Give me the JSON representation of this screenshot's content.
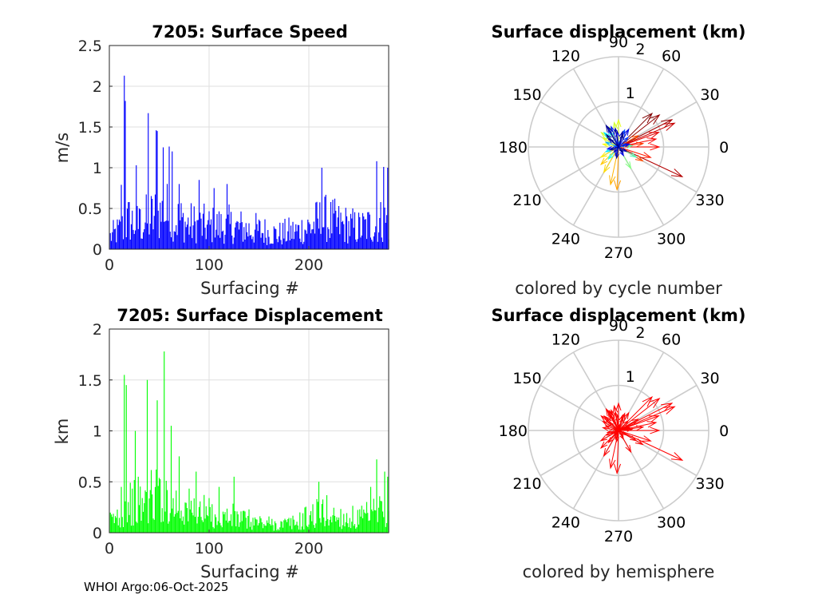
{
  "footer": "WHOI Argo:06-Oct-2025",
  "chart_data": [
    {
      "type": "bar",
      "title": "7205: Surface Speed",
      "xlabel": "Surfacing #",
      "ylabel": "m/s",
      "xlim": [
        0,
        280
      ],
      "ylim": [
        0,
        2.5
      ],
      "xticks": [
        0,
        100,
        200
      ],
      "yticks": [
        0,
        0.5,
        1,
        1.5,
        2,
        2.5
      ],
      "ytick_labels": [
        "0",
        "0.5",
        "1",
        "1.5",
        "2",
        "2.5"
      ],
      "color": "#0000ff",
      "peaks": [
        [
          15,
          2.13
        ],
        [
          16,
          1.82
        ],
        [
          39,
          1.67
        ],
        [
          47,
          1.46
        ],
        [
          48,
          1.45
        ],
        [
          54,
          1.25
        ],
        [
          60,
          1.26
        ],
        [
          63,
          1.2
        ],
        [
          27,
          1.03
        ],
        [
          12,
          0.79
        ],
        [
          30,
          0.5
        ],
        [
          70,
          0.8
        ],
        [
          90,
          0.85
        ],
        [
          105,
          0.75
        ],
        [
          118,
          0.8
        ],
        [
          213,
          1.0
        ],
        [
          268,
          1.08
        ],
        [
          275,
          1.01
        ],
        [
          279,
          1.0
        ]
      ],
      "envelope": [
        [
          0,
          0.3
        ],
        [
          10,
          0.45
        ],
        [
          20,
          0.7
        ],
        [
          30,
          0.6
        ],
        [
          45,
          0.8
        ],
        [
          55,
          0.9
        ],
        [
          65,
          0.75
        ],
        [
          80,
          0.6
        ],
        [
          100,
          0.55
        ],
        [
          120,
          0.55
        ],
        [
          150,
          0.45
        ],
        [
          170,
          0.35
        ],
        [
          190,
          0.45
        ],
        [
          200,
          0.55
        ],
        [
          215,
          0.7
        ],
        [
          230,
          0.6
        ],
        [
          250,
          0.5
        ],
        [
          265,
          0.6
        ],
        [
          280,
          0.7
        ]
      ]
    },
    {
      "type": "bar",
      "title": "7205: Surface Displacement",
      "xlabel": "Surfacing #",
      "ylabel": "km",
      "xlim": [
        0,
        280
      ],
      "ylim": [
        0,
        2
      ],
      "xticks": [
        0,
        100,
        200
      ],
      "yticks": [
        0,
        0.5,
        1,
        1.5,
        2
      ],
      "ytick_labels": [
        "0",
        "0.5",
        "1",
        "1.5",
        "2"
      ],
      "color": "#00ff00",
      "peaks": [
        [
          15,
          1.55
        ],
        [
          17,
          1.45
        ],
        [
          38,
          1.5
        ],
        [
          48,
          1.3
        ],
        [
          55,
          1.78
        ],
        [
          62,
          1.05
        ],
        [
          26,
          1.0
        ],
        [
          12,
          0.45
        ],
        [
          29,
          0.55
        ],
        [
          70,
          0.75
        ],
        [
          87,
          0.6
        ],
        [
          110,
          0.45
        ],
        [
          125,
          0.55
        ],
        [
          210,
          0.5
        ],
        [
          262,
          0.45
        ],
        [
          268,
          0.72
        ],
        [
          276,
          0.6
        ],
        [
          279,
          0.55
        ]
      ],
      "envelope": [
        [
          0,
          0.2
        ],
        [
          10,
          0.35
        ],
        [
          20,
          0.55
        ],
        [
          30,
          0.5
        ],
        [
          45,
          0.7
        ],
        [
          55,
          0.8
        ],
        [
          65,
          0.6
        ],
        [
          80,
          0.45
        ],
        [
          100,
          0.35
        ],
        [
          120,
          0.3
        ],
        [
          150,
          0.2
        ],
        [
          170,
          0.15
        ],
        [
          190,
          0.2
        ],
        [
          200,
          0.3
        ],
        [
          215,
          0.4
        ],
        [
          230,
          0.3
        ],
        [
          250,
          0.25
        ],
        [
          265,
          0.35
        ],
        [
          280,
          0.5
        ]
      ]
    },
    {
      "type": "polar",
      "title": "Surface displacement (km)",
      "caption": "colored by cycle number",
      "rmax": 2,
      "radial_ticks": [
        1,
        2
      ],
      "angle_ticks": [
        0,
        30,
        60,
        90,
        120,
        150,
        180,
        210,
        240,
        270,
        300,
        330
      ],
      "coloring": "cycle",
      "arrows": [
        [
          1.56,
          -25,
          0.95
        ],
        [
          1.35,
          23,
          0.93
        ],
        [
          1.33,
          27,
          0.97
        ],
        [
          1.15,
          38,
          0.98
        ],
        [
          1.05,
          45,
          1.0
        ],
        [
          0.95,
          20,
          0.9
        ],
        [
          0.85,
          12,
          0.88
        ],
        [
          0.9,
          0,
          0.87
        ],
        [
          0.75,
          -18,
          0.85
        ],
        [
          0.62,
          -30,
          0.8
        ],
        [
          0.55,
          8,
          0.82
        ],
        [
          0.5,
          30,
          0.8
        ],
        [
          0.95,
          268,
          0.72
        ],
        [
          0.85,
          258,
          0.7
        ],
        [
          0.65,
          240,
          0.66
        ],
        [
          0.55,
          225,
          0.68
        ],
        [
          0.45,
          210,
          0.64
        ],
        [
          0.35,
          170,
          0.62
        ],
        [
          0.4,
          150,
          0.6
        ],
        [
          0.5,
          140,
          0.58
        ],
        [
          0.48,
          115,
          0.55
        ],
        [
          0.6,
          90,
          0.6
        ],
        [
          0.55,
          100,
          0.58
        ],
        [
          0.55,
          300,
          0.5
        ],
        [
          0.45,
          330,
          0.45
        ],
        [
          0.3,
          5,
          0.45
        ],
        [
          0.35,
          230,
          0.4
        ],
        [
          0.3,
          200,
          0.35
        ],
        [
          0.4,
          120,
          0.4
        ],
        [
          0.45,
          135,
          0.35
        ],
        [
          0.3,
          160,
          0.3
        ],
        [
          0.48,
          110,
          0.15
        ],
        [
          0.5,
          118,
          0.08
        ],
        [
          0.45,
          60,
          0.1
        ],
        [
          0.4,
          70,
          0.2
        ],
        [
          0.35,
          95,
          0.12
        ],
        [
          0.3,
          45,
          0.18
        ],
        [
          0.28,
          140,
          0.05
        ],
        [
          0.25,
          15,
          0.1
        ],
        [
          0.25,
          190,
          0.12
        ],
        [
          0.2,
          250,
          0.15
        ],
        [
          0.22,
          300,
          0.1
        ],
        [
          0.2,
          330,
          0.05
        ],
        [
          0.18,
          20,
          0.2
        ],
        [
          0.15,
          230,
          0.08
        ],
        [
          0.12,
          80,
          0.25
        ],
        [
          0.1,
          170,
          0.2
        ],
        [
          0.55,
          120,
          0.02
        ],
        [
          0.42,
          100,
          0.03
        ],
        [
          0.38,
          135,
          0.0
        ],
        [
          0.3,
          70,
          0.01
        ],
        [
          0.35,
          75,
          0.04
        ],
        [
          0.2,
          200,
          0.02
        ],
        [
          0.25,
          260,
          0.03
        ],
        [
          0.15,
          310,
          0.01
        ]
      ]
    },
    {
      "type": "polar",
      "title": "Surface displacement (km)",
      "caption": "colored by hemisphere",
      "rmax": 2,
      "radial_ticks": [
        1,
        2
      ],
      "angle_ticks": [
        0,
        30,
        60,
        90,
        120,
        150,
        180,
        210,
        240,
        270,
        300,
        330
      ],
      "coloring": "hemisphere",
      "color": "#ff0000",
      "arrows": [
        [
          1.56,
          -25,
          0.95
        ],
        [
          1.35,
          23,
          0.93
        ],
        [
          1.33,
          27,
          0.97
        ],
        [
          1.15,
          38,
          0.98
        ],
        [
          1.05,
          45,
          1.0
        ],
        [
          0.95,
          20,
          0.9
        ],
        [
          0.85,
          12,
          0.88
        ],
        [
          0.9,
          0,
          0.87
        ],
        [
          0.75,
          -18,
          0.85
        ],
        [
          0.62,
          -30,
          0.8
        ],
        [
          0.55,
          8,
          0.82
        ],
        [
          0.5,
          30,
          0.8
        ],
        [
          0.95,
          268,
          0.72
        ],
        [
          0.85,
          258,
          0.7
        ],
        [
          0.65,
          240,
          0.66
        ],
        [
          0.55,
          225,
          0.68
        ],
        [
          0.45,
          210,
          0.64
        ],
        [
          0.35,
          170,
          0.62
        ],
        [
          0.4,
          150,
          0.6
        ],
        [
          0.5,
          140,
          0.58
        ],
        [
          0.48,
          115,
          0.55
        ],
        [
          0.6,
          90,
          0.6
        ],
        [
          0.55,
          100,
          0.58
        ],
        [
          0.55,
          300,
          0.5
        ],
        [
          0.45,
          330,
          0.45
        ],
        [
          0.3,
          5,
          0.45
        ],
        [
          0.35,
          230,
          0.4
        ],
        [
          0.3,
          200,
          0.35
        ],
        [
          0.4,
          120,
          0.4
        ],
        [
          0.45,
          135,
          0.35
        ],
        [
          0.3,
          160,
          0.3
        ],
        [
          0.48,
          110,
          0.15
        ],
        [
          0.5,
          118,
          0.08
        ],
        [
          0.45,
          60,
          0.1
        ],
        [
          0.4,
          70,
          0.2
        ],
        [
          0.35,
          95,
          0.12
        ],
        [
          0.3,
          45,
          0.18
        ],
        [
          0.28,
          140,
          0.05
        ],
        [
          0.25,
          15,
          0.1
        ],
        [
          0.25,
          190,
          0.12
        ],
        [
          0.2,
          250,
          0.15
        ],
        [
          0.22,
          300,
          0.1
        ],
        [
          0.2,
          330,
          0.05
        ],
        [
          0.18,
          20,
          0.2
        ],
        [
          0.15,
          230,
          0.08
        ],
        [
          0.12,
          80,
          0.25
        ],
        [
          0.1,
          170,
          0.2
        ],
        [
          0.55,
          120,
          0.02
        ],
        [
          0.42,
          100,
          0.03
        ],
        [
          0.38,
          135,
          0.0
        ],
        [
          0.3,
          70,
          0.01
        ],
        [
          0.35,
          75,
          0.04
        ],
        [
          0.2,
          200,
          0.02
        ],
        [
          0.25,
          260,
          0.03
        ],
        [
          0.15,
          310,
          0.01
        ]
      ]
    }
  ]
}
